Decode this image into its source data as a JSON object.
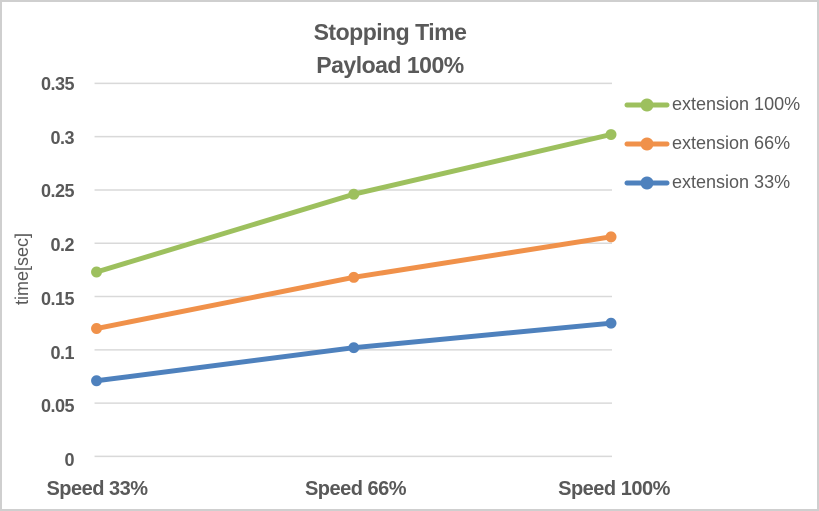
{
  "chart_data": {
    "type": "line",
    "title": "Stopping Time",
    "subtitle": "Payload 100%",
    "ylabel": "time[sec]",
    "xlabel": "",
    "categories": [
      "Speed 33%",
      "Speed 66%",
      "Speed 100%"
    ],
    "series": [
      {
        "name": "extension 100%",
        "color": "#9DC05E",
        "values": [
          0.173,
          0.246,
          0.302
        ]
      },
      {
        "name": "extension 66%",
        "color": "#F0914A",
        "values": [
          0.12,
          0.168,
          0.206
        ]
      },
      {
        "name": "extension 33%",
        "color": "#4E81BD",
        "values": [
          0.071,
          0.102,
          0.125
        ]
      }
    ],
    "ylim": [
      0,
      0.35
    ],
    "yticks": [
      0,
      0.05,
      0.1,
      0.15,
      0.2,
      0.25,
      0.3,
      0.35
    ],
    "ytick_labels": [
      "0",
      "0.05",
      "0.1",
      "0.15",
      "0.2",
      "0.25",
      "0.3",
      "0.35"
    ],
    "grid": "horizontal-only",
    "legend_position": "right",
    "marker": "circle",
    "colors": {
      "text": "#595959",
      "gridline": "#D9D9D9",
      "chart_border": "#CFCFCF",
      "background": "#FFFFFF"
    }
  }
}
